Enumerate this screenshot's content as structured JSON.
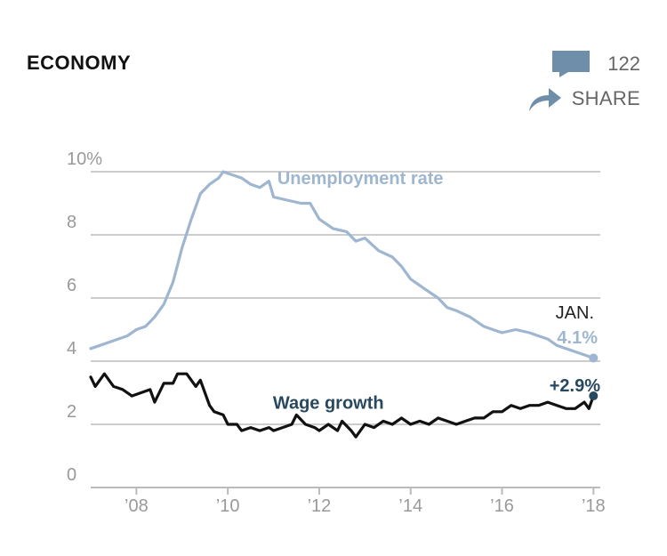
{
  "header": {
    "section_label": "ECONOMY",
    "comment_count": "122",
    "share_label": "SHARE",
    "icons": [
      "comment-icon",
      "share-icon"
    ],
    "icon_color": "#6f8ea9"
  },
  "chart_data": {
    "type": "line",
    "title": "",
    "xlabel": "",
    "ylabel": "",
    "xlim": [
      2007.0,
      2018.15
    ],
    "ylim": [
      0,
      10
    ],
    "grid": true,
    "y_ticks": [
      {
        "value": 10,
        "label": "10%"
      },
      {
        "value": 8,
        "label": "8"
      },
      {
        "value": 6,
        "label": "6"
      },
      {
        "value": 4,
        "label": "4"
      },
      {
        "value": 2,
        "label": "2"
      },
      {
        "value": 0,
        "label": "0"
      }
    ],
    "x_ticks": [
      {
        "value": 2008,
        "label": "’08"
      },
      {
        "value": 2010,
        "label": "’10"
      },
      {
        "value": 2012,
        "label": "’12"
      },
      {
        "value": 2014,
        "label": "’14"
      },
      {
        "value": 2016,
        "label": "’16"
      },
      {
        "value": 2018,
        "label": "’18"
      }
    ],
    "series": [
      {
        "name": "Unemployment rate",
        "color": "#9fb6d0",
        "points": [
          [
            2007.0,
            4.4
          ],
          [
            2007.2,
            4.5
          ],
          [
            2007.4,
            4.6
          ],
          [
            2007.6,
            4.7
          ],
          [
            2007.8,
            4.8
          ],
          [
            2008.0,
            5.0
          ],
          [
            2008.2,
            5.1
          ],
          [
            2008.4,
            5.4
          ],
          [
            2008.6,
            5.8
          ],
          [
            2008.8,
            6.5
          ],
          [
            2009.0,
            7.6
          ],
          [
            2009.2,
            8.5
          ],
          [
            2009.4,
            9.3
          ],
          [
            2009.6,
            9.6
          ],
          [
            2009.8,
            9.8
          ],
          [
            2009.9,
            10.0
          ],
          [
            2010.1,
            9.9
          ],
          [
            2010.3,
            9.8
          ],
          [
            2010.5,
            9.6
          ],
          [
            2010.7,
            9.5
          ],
          [
            2010.9,
            9.7
          ],
          [
            2011.0,
            9.2
          ],
          [
            2011.3,
            9.1
          ],
          [
            2011.6,
            9.0
          ],
          [
            2011.8,
            9.0
          ],
          [
            2012.0,
            8.5
          ],
          [
            2012.3,
            8.2
          ],
          [
            2012.6,
            8.1
          ],
          [
            2012.8,
            7.8
          ],
          [
            2013.0,
            7.9
          ],
          [
            2013.3,
            7.5
          ],
          [
            2013.6,
            7.3
          ],
          [
            2013.8,
            7.0
          ],
          [
            2014.0,
            6.6
          ],
          [
            2014.3,
            6.3
          ],
          [
            2014.6,
            6.0
          ],
          [
            2014.8,
            5.7
          ],
          [
            2015.0,
            5.6
          ],
          [
            2015.3,
            5.4
          ],
          [
            2015.6,
            5.1
          ],
          [
            2015.8,
            5.0
          ],
          [
            2016.0,
            4.9
          ],
          [
            2016.3,
            5.0
          ],
          [
            2016.6,
            4.9
          ],
          [
            2016.8,
            4.8
          ],
          [
            2017.0,
            4.7
          ],
          [
            2017.2,
            4.5
          ],
          [
            2017.4,
            4.4
          ],
          [
            2017.6,
            4.3
          ],
          [
            2017.8,
            4.2
          ],
          [
            2018.0,
            4.1
          ]
        ]
      },
      {
        "name": "Wage growth",
        "color": "#111111",
        "points": [
          [
            2007.0,
            3.5
          ],
          [
            2007.1,
            3.2
          ],
          [
            2007.3,
            3.6
          ],
          [
            2007.5,
            3.2
          ],
          [
            2007.7,
            3.1
          ],
          [
            2007.9,
            2.9
          ],
          [
            2008.1,
            3.0
          ],
          [
            2008.3,
            3.1
          ],
          [
            2008.4,
            2.7
          ],
          [
            2008.6,
            3.3
          ],
          [
            2008.8,
            3.3
          ],
          [
            2008.9,
            3.6
          ],
          [
            2009.1,
            3.6
          ],
          [
            2009.3,
            3.2
          ],
          [
            2009.4,
            3.4
          ],
          [
            2009.6,
            2.6
          ],
          [
            2009.7,
            2.4
          ],
          [
            2009.9,
            2.3
          ],
          [
            2010.0,
            2.0
          ],
          [
            2010.2,
            2.0
          ],
          [
            2010.3,
            1.8
          ],
          [
            2010.5,
            1.9
          ],
          [
            2010.7,
            1.8
          ],
          [
            2010.9,
            1.9
          ],
          [
            2011.0,
            1.8
          ],
          [
            2011.2,
            1.9
          ],
          [
            2011.4,
            2.0
          ],
          [
            2011.5,
            2.3
          ],
          [
            2011.7,
            2.0
          ],
          [
            2011.9,
            1.9
          ],
          [
            2012.0,
            1.8
          ],
          [
            2012.2,
            2.0
          ],
          [
            2012.4,
            1.8
          ],
          [
            2012.5,
            2.1
          ],
          [
            2012.7,
            1.8
          ],
          [
            2012.8,
            1.6
          ],
          [
            2013.0,
            2.0
          ],
          [
            2013.2,
            1.9
          ],
          [
            2013.4,
            2.1
          ],
          [
            2013.6,
            2.0
          ],
          [
            2013.8,
            2.2
          ],
          [
            2014.0,
            2.0
          ],
          [
            2014.2,
            2.1
          ],
          [
            2014.4,
            2.0
          ],
          [
            2014.6,
            2.2
          ],
          [
            2014.8,
            2.1
          ],
          [
            2015.0,
            2.0
          ],
          [
            2015.2,
            2.1
          ],
          [
            2015.4,
            2.2
          ],
          [
            2015.6,
            2.2
          ],
          [
            2015.8,
            2.4
          ],
          [
            2016.0,
            2.4
          ],
          [
            2016.2,
            2.6
          ],
          [
            2016.4,
            2.5
          ],
          [
            2016.6,
            2.6
          ],
          [
            2016.8,
            2.6
          ],
          [
            2017.0,
            2.7
          ],
          [
            2017.2,
            2.6
          ],
          [
            2017.4,
            2.5
          ],
          [
            2017.6,
            2.5
          ],
          [
            2017.8,
            2.7
          ],
          [
            2017.9,
            2.5
          ],
          [
            2018.0,
            2.9
          ]
        ]
      }
    ],
    "annotations": [
      {
        "text": "JAN.",
        "color": "#222222"
      },
      {
        "text": "4.1%",
        "color": "#9fb6d0",
        "series": "Unemployment rate",
        "x": 2018.0,
        "y": 4.1
      },
      {
        "text": "+2.9%",
        "color": "#27485e",
        "series": "Wage growth",
        "x": 2018.0,
        "y": 2.9
      }
    ],
    "colors": {
      "unemployment": "#9fb6d0",
      "wage": "#111111",
      "wage_label": "#27485e",
      "grid": "#cccccc",
      "axis": "#bbbbbb",
      "tick_text": "#999999"
    }
  }
}
